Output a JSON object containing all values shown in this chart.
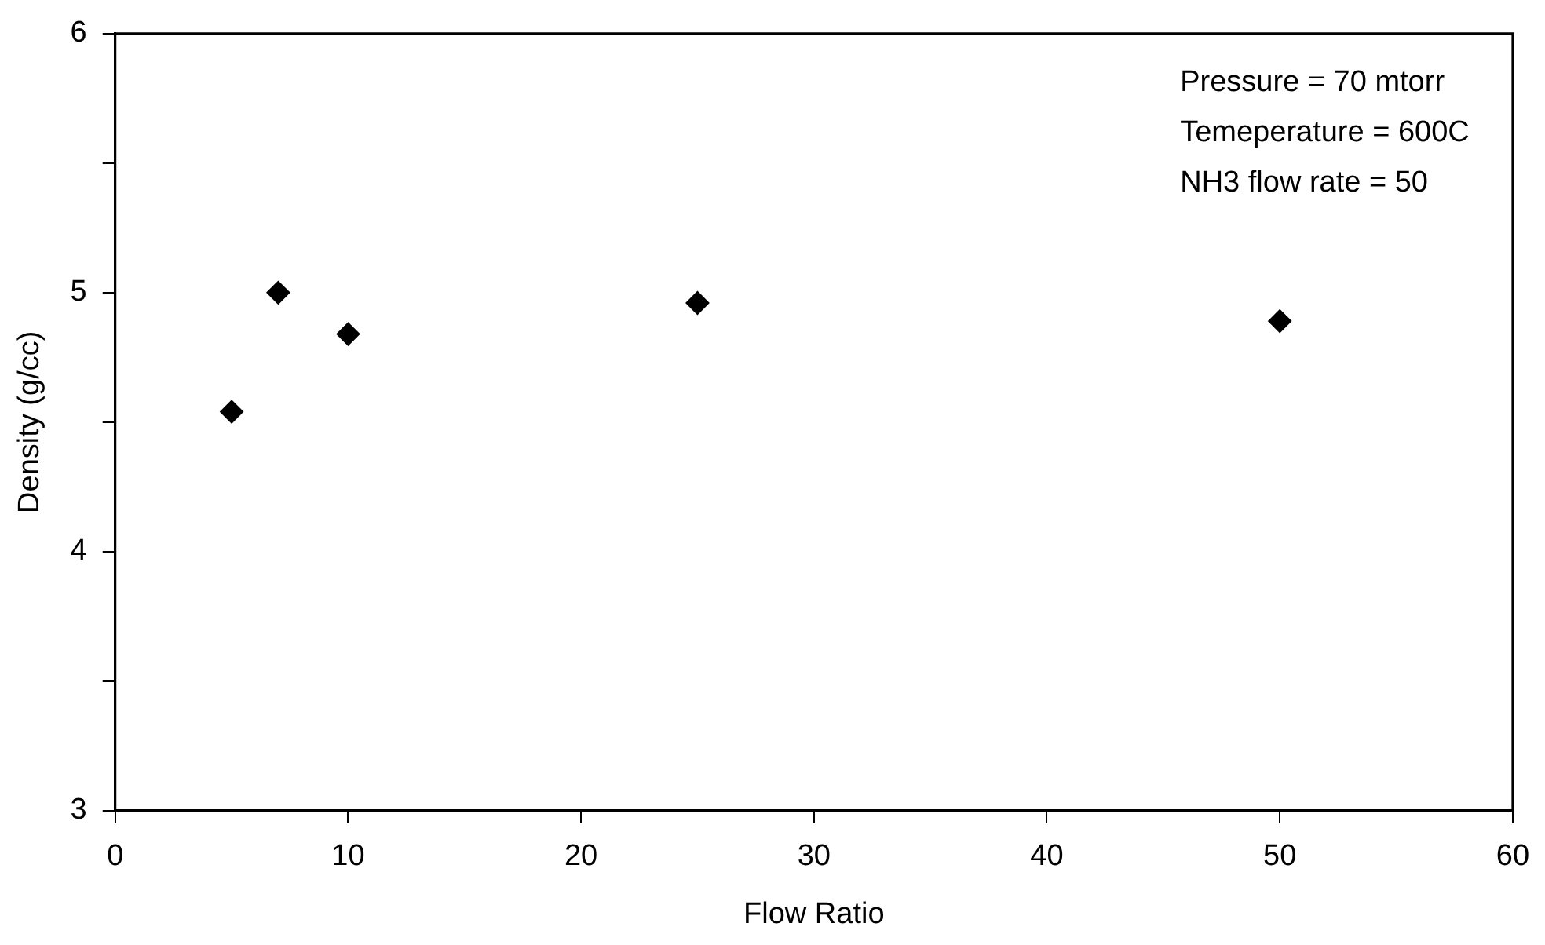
{
  "chart_data": {
    "type": "scatter",
    "xlabel": "Flow Ratio",
    "ylabel": "Density (g/cc)",
    "x": [
      5,
      7,
      10,
      25,
      50
    ],
    "series": [
      {
        "color": "#000000",
        "values": [
          4.54,
          5.0,
          4.84,
          4.96,
          4.89
        ]
      }
    ],
    "xlim": [
      0,
      60
    ],
    "xticks": [
      0,
      10,
      20,
      30,
      40,
      50,
      60
    ],
    "ylim": [
      3,
      6
    ],
    "yticks": [
      3,
      {
        "value": 3.5,
        "label": null
      },
      4,
      {
        "value": 4.5,
        "label": null
      },
      5,
      {
        "value": 5.5,
        "label": null
      },
      6
    ],
    "marker": "diamond",
    "grid": false,
    "legend": false,
    "annotations": [
      "Pressure = 70 mtorr",
      "Temeperature = 600C",
      "NH3 flow rate = 50"
    ]
  }
}
